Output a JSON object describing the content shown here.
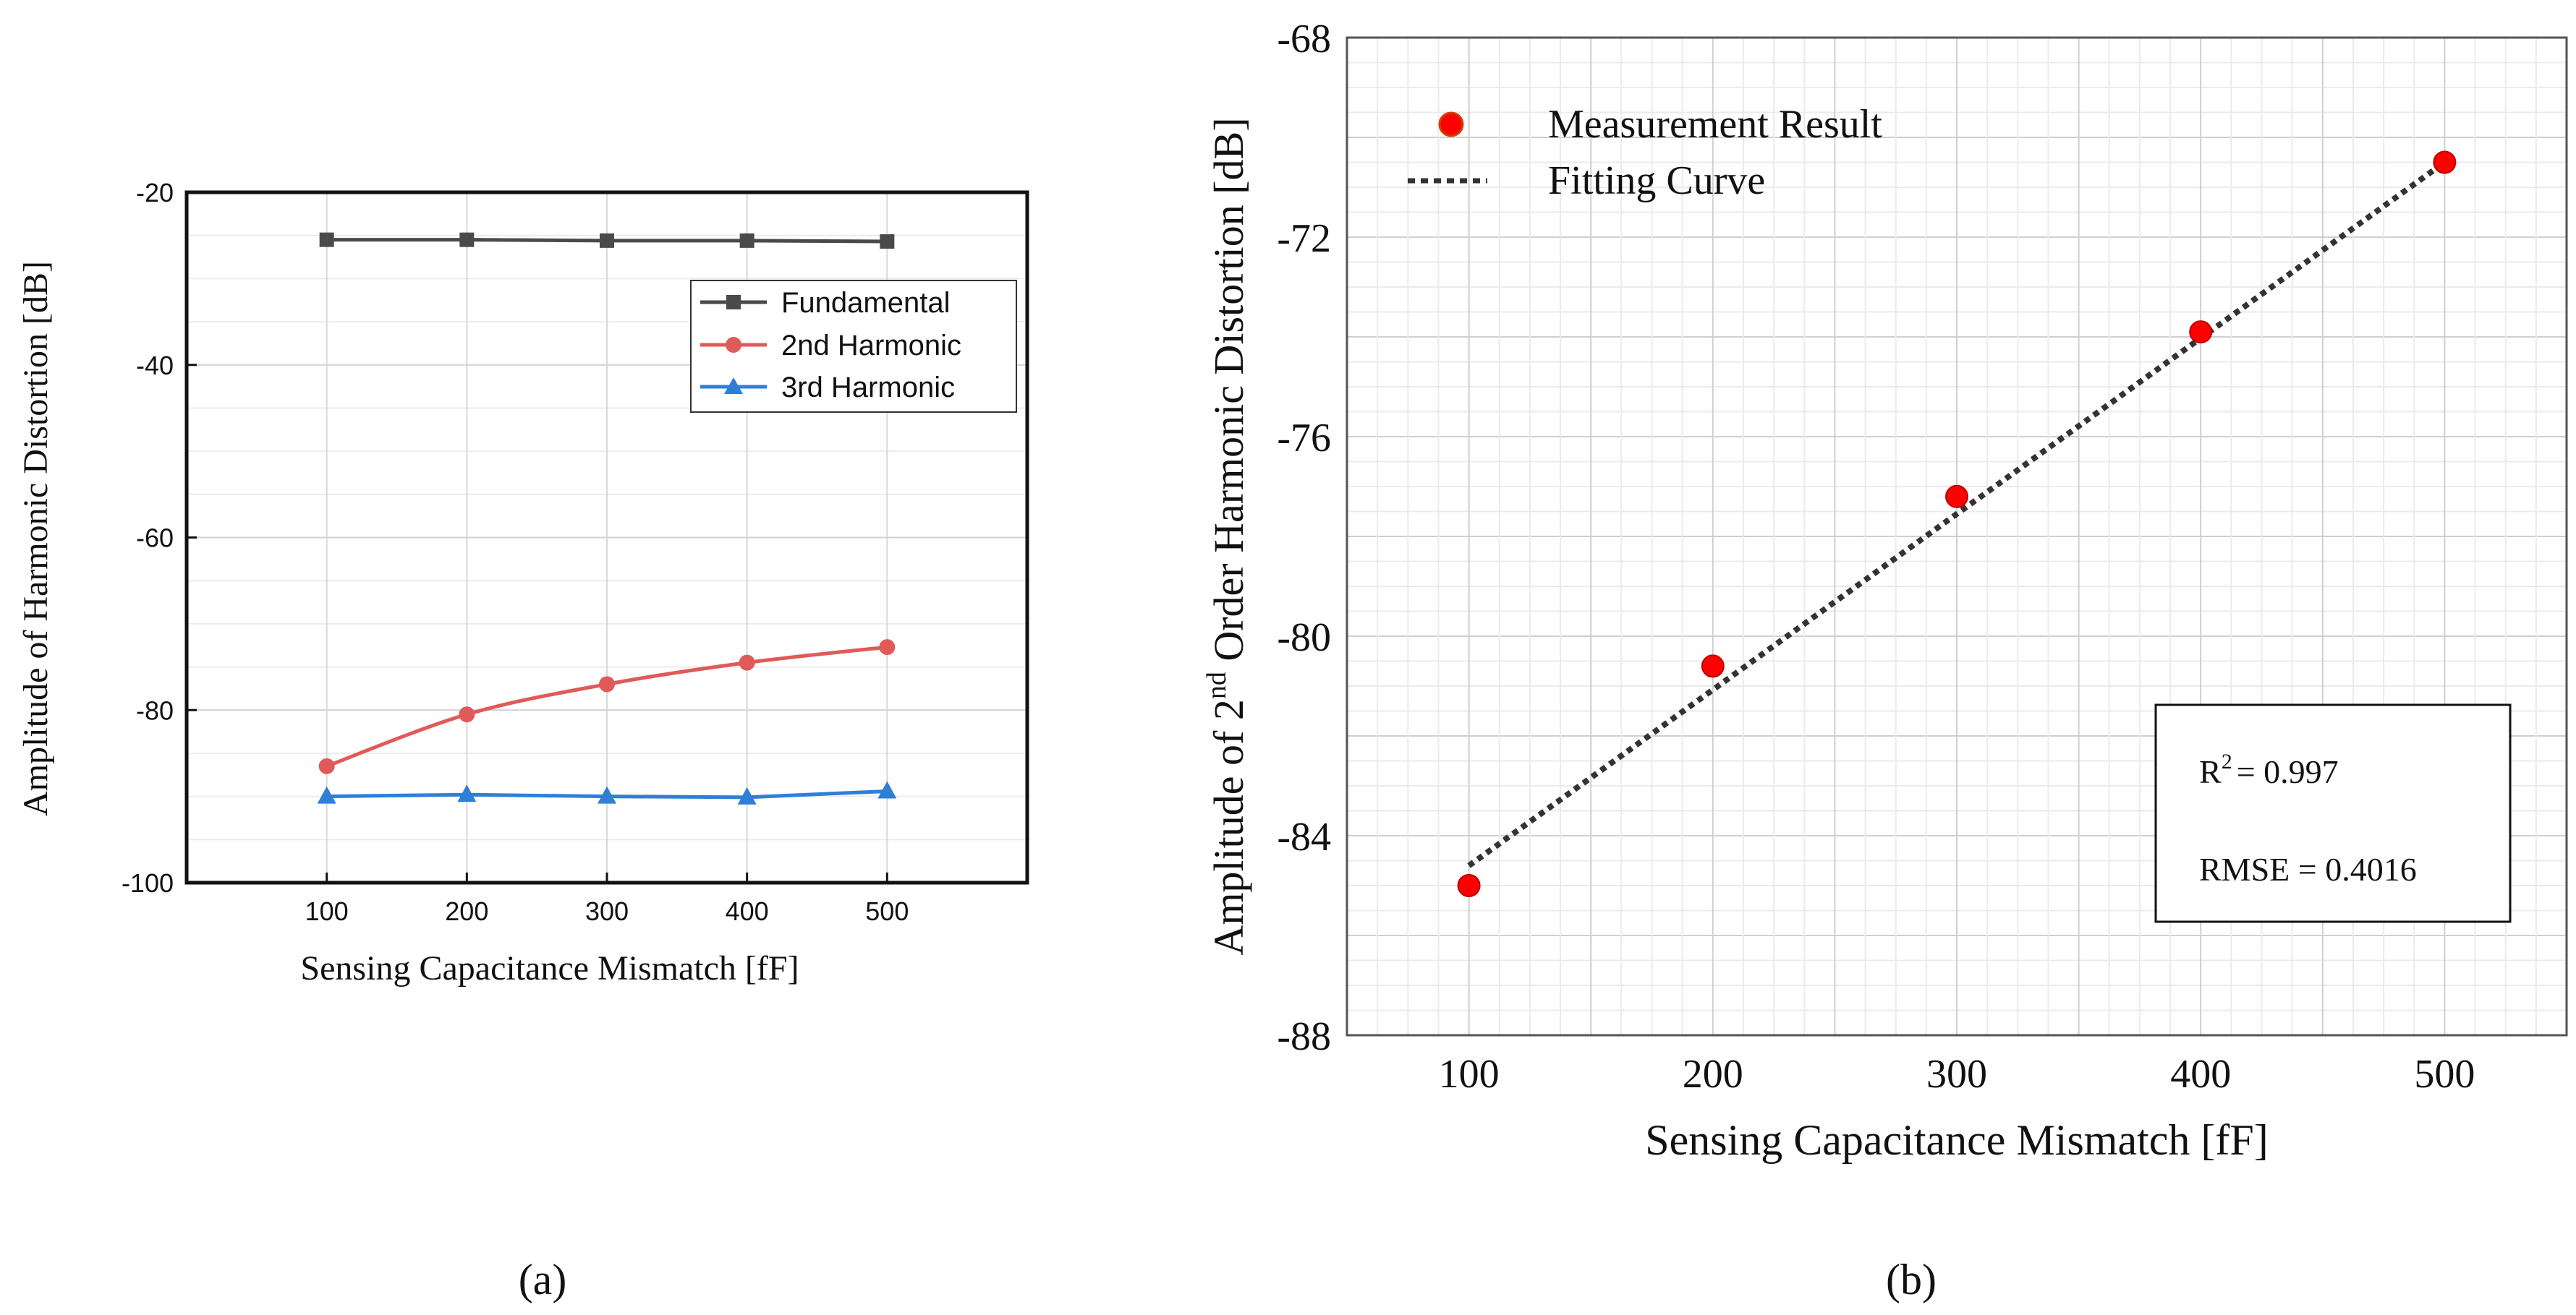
{
  "chart_data": [
    {
      "type": "line",
      "panel_label": "(a)",
      "xlabel": "Sensing Capacitance Mismatch [fF]",
      "ylabel": "Amplitude of Harmonic Distortion [dB]",
      "xlim": [
        0,
        600
      ],
      "ylim": [
        -100,
        -20
      ],
      "x_ticks": [
        100,
        200,
        300,
        400,
        500
      ],
      "y_ticks": [
        -100,
        -80,
        -60,
        -40,
        -20
      ],
      "grid": true,
      "legend_position": "top-right",
      "x": [
        100,
        200,
        300,
        400,
        500
      ],
      "series": [
        {
          "name": "Fundamental",
          "color": "#4a4a4a",
          "marker": "square",
          "values": [
            -25.5,
            -25.5,
            -25.6,
            -25.6,
            -25.7
          ]
        },
        {
          "name": "2nd Harmonic",
          "color": "#e05a5a",
          "marker": "circle",
          "values": [
            -86.5,
            -80.5,
            -77.0,
            -74.5,
            -72.7
          ]
        },
        {
          "name": "3rd Harmonic",
          "color": "#2f7fd8",
          "marker": "triangle",
          "values": [
            -90.0,
            -89.8,
            -90.0,
            -90.1,
            -89.4
          ]
        }
      ]
    },
    {
      "type": "scatter",
      "panel_label": "(b)",
      "xlabel": "Sensing Capacitance Mismatch [fF]",
      "ylabel_parts": [
        "Amplitude of 2",
        "nd",
        " Order Harmonic Distortion [dB]"
      ],
      "xlim": [
        50,
        550
      ],
      "ylim": [
        -88,
        -68
      ],
      "x_ticks": [
        100,
        200,
        300,
        400,
        500
      ],
      "y_ticks": [
        -88,
        -84,
        -80,
        -76,
        -72,
        -68
      ],
      "grid": true,
      "legend_position": "top-left",
      "series": [
        {
          "name": "Measurement Result",
          "color": "#ff0000",
          "marker": "circle",
          "x": [
            100,
            200,
            300,
            400,
            500
          ],
          "values": [
            -85.0,
            -80.6,
            -77.2,
            -73.9,
            -70.5
          ]
        },
        {
          "name": "Fitting Curve",
          "color": "#333333",
          "style": "dotted",
          "x": [
            100,
            500
          ],
          "values": [
            -84.6,
            -70.5
          ]
        }
      ],
      "stats": {
        "r2_prefix": "R",
        "r2_sup": "2",
        "r2_value": "= 0.997",
        "rmse": "RMSE = 0.4016"
      }
    }
  ]
}
